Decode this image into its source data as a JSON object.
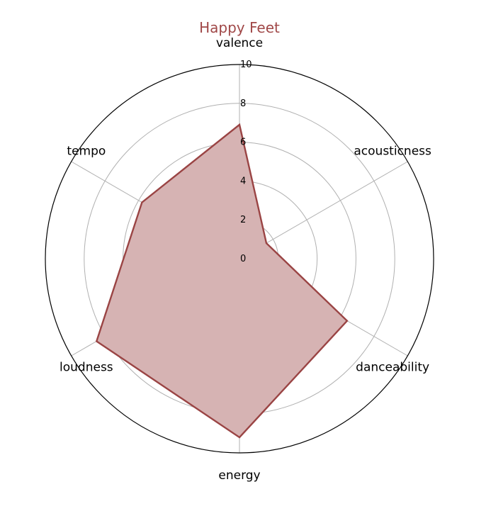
{
  "chart_data": {
    "type": "radar",
    "title": "Happy Feet",
    "axes": [
      "valence",
      "acousticness",
      "danceability",
      "energy",
      "loudness",
      "tempo"
    ],
    "series": [
      {
        "values": [
          6.9,
          1.6,
          6.4,
          9.2,
          8.5,
          5.8
        ]
      }
    ],
    "rlim": [
      0,
      10
    ],
    "rticks": [
      "0",
      "2",
      "4",
      "6",
      "8",
      "10"
    ],
    "rtick_values": [
      0,
      2,
      4,
      6,
      8,
      10
    ],
    "grid": true,
    "colors": {
      "title": "#a04848",
      "line": "#9a4444",
      "fill": "#d6b3b3",
      "grid": "#b0b0b0",
      "outer": "#000000"
    }
  }
}
